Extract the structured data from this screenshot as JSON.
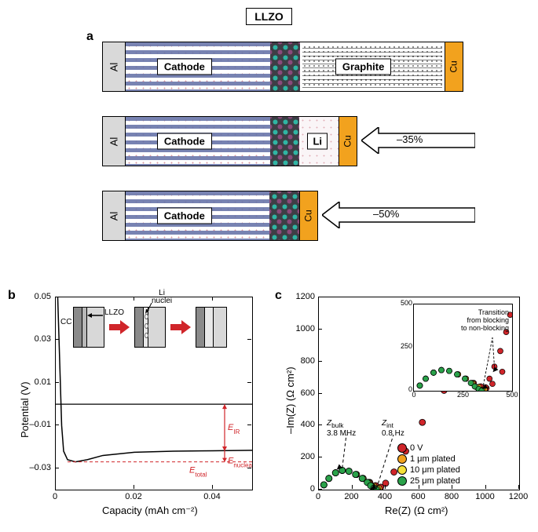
{
  "title": "LLZO",
  "panelA": {
    "label": "a",
    "al": "Al",
    "cu": "Cu",
    "cathode": "Cathode",
    "graphite": "Graphite",
    "li": "Li",
    "reduction1": "–35%",
    "reduction2": "–50%",
    "colors": {
      "al": "#d9d9d9",
      "cu": "#f2a21e",
      "cathode_stripe": "#6975a9",
      "red_dot": "#c86d7a",
      "llzo_bg": "#3e3e46",
      "llzo_dot1": "#2fb5a3",
      "llzo_dot2": "#8a4a7b"
    },
    "rows": [
      {
        "cathode_w": 185,
        "llzo_w": 38,
        "right_type": "graphite",
        "right_w": 185,
        "total_w": 458
      },
      {
        "cathode_w": 185,
        "llzo_w": 38,
        "right_type": "li",
        "right_w": 50,
        "total_w": 323
      },
      {
        "cathode_w": 185,
        "llzo_w": 38,
        "right_type": "none",
        "right_w": 0,
        "total_w": 273
      }
    ]
  },
  "panelB": {
    "label": "b",
    "xlabel": "Capacity (mAh cm⁻²)",
    "ylabel": "Potential (V)",
    "xlim": [
      0,
      0.05
    ],
    "ylim": [
      -0.04,
      0.05
    ],
    "xticks": [
      0,
      0.02,
      0.04
    ],
    "yticks": [
      -0.03,
      -0.01,
      0.01,
      0.03,
      0.05
    ],
    "curve": [
      [
        0.0005,
        0.05
      ],
      [
        0.001,
        0.02
      ],
      [
        0.0015,
        -0.01
      ],
      [
        0.002,
        -0.022
      ],
      [
        0.003,
        -0.026
      ],
      [
        0.005,
        -0.027
      ],
      [
        0.008,
        -0.026
      ],
      [
        0.012,
        -0.024
      ],
      [
        0.02,
        -0.0225
      ],
      [
        0.03,
        -0.022
      ],
      [
        0.04,
        -0.0218
      ],
      [
        0.05,
        -0.0216
      ]
    ],
    "zero_line_y": 0,
    "etotal_y": -0.027,
    "plateau_y": -0.022,
    "annot": {
      "E_IR": "E_IR",
      "E_nucleation": "E_nucleation",
      "E_total": "E_total",
      "CC": "CC",
      "LLZO": "LLZO",
      "LiNuclei": "Li\nnuclei"
    },
    "colors": {
      "curve": "#000000",
      "annot": "#d0252a"
    }
  },
  "panelC": {
    "label": "c",
    "xlabel": "Re(Z) (Ω cm²)",
    "ylabel": "–Im(Z) (Ω cm²)",
    "xlim": [
      0,
      1200
    ],
    "ylim": [
      0,
      1200
    ],
    "ticks": [
      0,
      200,
      400,
      600,
      800,
      1000,
      1200
    ],
    "inset": {
      "xlim": [
        0,
        500
      ],
      "ylim": [
        0,
        500
      ],
      "ticks": [
        0,
        250,
        500
      ],
      "title": "Transition\nfrom blocking\nto non-blocking"
    },
    "legend": [
      {
        "label": "0 V",
        "color": "#d0252a"
      },
      {
        "label": "1 μm plated",
        "color": "#f2a21e"
      },
      {
        "label": "10 μm plated",
        "color": "#f6e13a"
      },
      {
        "label": "25 μm plated",
        "color": "#2aa24a"
      }
    ],
    "annot": {
      "zbulk": "Z_bulk",
      "zbulk_freq": "3.8 MHz",
      "zint": "Z_int",
      "zint_freq": "0.8 Hz"
    },
    "series": {
      "green": [
        [
          30,
          30
        ],
        [
          60,
          70
        ],
        [
          100,
          105
        ],
        [
          140,
          120
        ],
        [
          180,
          115
        ],
        [
          220,
          95
        ],
        [
          260,
          70
        ],
        [
          290,
          45
        ],
        [
          310,
          25
        ],
        [
          330,
          10
        ],
        [
          345,
          0
        ]
      ],
      "yellow": [
        [
          30,
          30
        ],
        [
          60,
          70
        ],
        [
          100,
          105
        ],
        [
          140,
          120
        ],
        [
          180,
          115
        ],
        [
          220,
          95
        ],
        [
          260,
          70
        ],
        [
          295,
          45
        ],
        [
          320,
          20
        ],
        [
          350,
          5
        ]
      ],
      "orange": [
        [
          30,
          30
        ],
        [
          60,
          70
        ],
        [
          100,
          105
        ],
        [
          140,
          120
        ],
        [
          180,
          115
        ],
        [
          225,
          95
        ],
        [
          265,
          70
        ],
        [
          300,
          45
        ],
        [
          330,
          22
        ],
        [
          360,
          8
        ]
      ],
      "red": [
        [
          30,
          30
        ],
        [
          60,
          70
        ],
        [
          100,
          105
        ],
        [
          140,
          120
        ],
        [
          180,
          115
        ],
        [
          225,
          95
        ],
        [
          265,
          70
        ],
        [
          305,
          45
        ],
        [
          340,
          25
        ],
        [
          370,
          15
        ],
        [
          400,
          40
        ],
        [
          450,
          110
        ],
        [
          520,
          240
        ],
        [
          620,
          420
        ],
        [
          750,
          620
        ],
        [
          900,
          850
        ],
        [
          1030,
          1050
        ]
      ]
    }
  }
}
